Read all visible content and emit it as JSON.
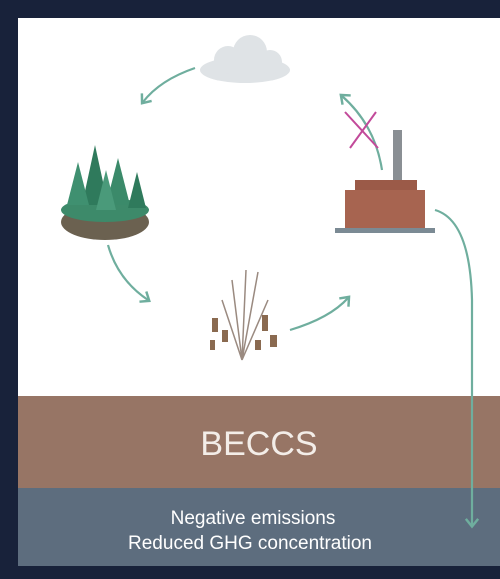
{
  "diagram": {
    "label": "BECCS",
    "caption": [
      "Negative emissions",
      "Reduced GHG concentration"
    ]
  }
}
